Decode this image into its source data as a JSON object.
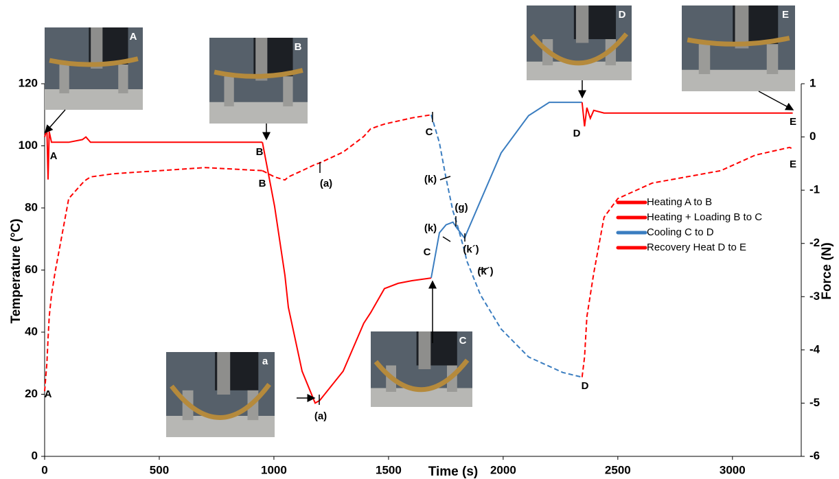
{
  "chart_data": {
    "type": "line",
    "xlabel": "Time (s)",
    "ylabel": "Temperature (°C)",
    "y2label": "Force (N)",
    "xlim": [
      0,
      3300
    ],
    "xticks": [
      0,
      500,
      1000,
      1500,
      2000,
      2500,
      3000
    ],
    "ylim": [
      0,
      120
    ],
    "yticks": [
      0,
      20,
      40,
      60,
      80,
      100,
      120
    ],
    "y2lim": [
      -6,
      1
    ],
    "y2ticks": [
      -6,
      -5,
      -4,
      -3,
      -2,
      -1,
      0,
      1
    ],
    "series": [
      {
        "name": "Heating A to B",
        "color": "#ff0000",
        "x": [
          0,
          10,
          15,
          20,
          30,
          45,
          105,
          165,
          180,
          200,
          300,
          500,
          700,
          950
        ],
        "temperature": [
          21,
          30,
          38,
          45,
          52,
          59,
          83,
          88,
          89,
          90,
          91,
          92,
          93,
          92
        ],
        "force": [
          0.0,
          0.15,
          -0.8,
          0.1,
          -0.1,
          -0.1,
          -0.1,
          -0.05,
          0.0,
          -0.1,
          -0.1,
          -0.1,
          -0.1,
          -0.1
        ]
      },
      {
        "name": "Heating + Loading B to C",
        "color": "#ff0000",
        "x": [
          950,
          1003,
          1048,
          1063,
          1123,
          1180,
          1200,
          1302,
          1392,
          1422,
          1482,
          1542,
          1602,
          1686
        ],
        "temperature": [
          92,
          90,
          89,
          90,
          92,
          94,
          94.5,
          98,
          103,
          105.5,
          107,
          108,
          109,
          110
        ],
        "force": [
          -0.1,
          -1.3,
          -2.6,
          -3.2,
          -4.4,
          -5.0,
          -4.95,
          -4.4,
          -3.5,
          -3.3,
          -2.85,
          -2.75,
          -2.7,
          -2.65
        ]
      },
      {
        "name": "Cooling C to D",
        "color": "#3a7dc0",
        "x": [
          1686,
          1722,
          1751,
          1781,
          1796,
          1832,
          1841,
          1901,
          1991,
          2111,
          2201,
          2260,
          2344
        ],
        "temperature": [
          110,
          101,
          89.5,
          79,
          75.5,
          66,
          63,
          52,
          41,
          32,
          29,
          27,
          25.5
        ],
        "force": [
          -2.65,
          -1.8,
          -1.65,
          -1.6,
          -1.7,
          -1.9,
          -1.8,
          -1.2,
          -0.3,
          0.4,
          0.65,
          0.65,
          0.65
        ]
      },
      {
        "name": "Recovery Heat D to E",
        "color": "#ff0000",
        "x": [
          2344,
          2355,
          2365,
          2380,
          2395,
          2440,
          2500,
          2650,
          2949,
          3099,
          3249,
          3263
        ],
        "temperature": [
          25.5,
          32,
          45,
          52,
          59,
          77,
          83,
          88,
          92,
          97,
          99.5,
          99
        ],
        "force": [
          0.65,
          0.2,
          0.55,
          0.35,
          0.5,
          0.45,
          0.45,
          0.45,
          0.45,
          0.45,
          0.45,
          0.45
        ]
      }
    ],
    "annotations": [
      "A",
      "B",
      "B",
      "(a)",
      "C",
      "(k)",
      "(g)",
      "(k)",
      "(k´)",
      "C",
      "(k´)",
      "A",
      "(a)",
      "D",
      "D",
      "E",
      "E"
    ],
    "insets": [
      "A",
      "B",
      "a",
      "C",
      "D",
      "E"
    ]
  }
}
